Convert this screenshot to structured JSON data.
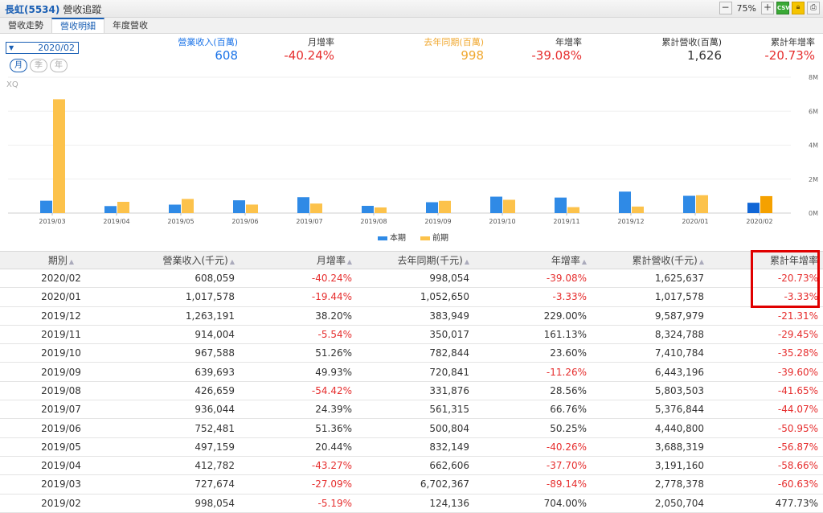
{
  "header": {
    "stock": "長虹(5534)",
    "title": "營收追蹤",
    "zoom": "75%",
    "csv_label": "CSV"
  },
  "tabs": [
    {
      "label": "營收走勢"
    },
    {
      "label": "營收明細"
    },
    {
      "label": "年度營收"
    }
  ],
  "controls": {
    "period": "2020/02",
    "freq": [
      "月",
      "季",
      "年"
    ]
  },
  "summary": [
    {
      "label": "營業收入(百萬)",
      "value": "608"
    },
    {
      "label": "月增率",
      "value": "-40.24%"
    },
    {
      "label": "去年同期(百萬)",
      "value": "998"
    },
    {
      "label": "年增率",
      "value": "-39.08%"
    },
    {
      "label": "累計營收(百萬)",
      "value": "1,626"
    },
    {
      "label": "累計年增率",
      "value": "-20.73%"
    }
  ],
  "chart_data": {
    "type": "bar",
    "watermark": "XQ",
    "categories": [
      "2019/03",
      "2019/04",
      "2019/05",
      "2019/06",
      "2019/07",
      "2019/08",
      "2019/09",
      "2019/10",
      "2019/11",
      "2019/12",
      "2020/01",
      "2020/02"
    ],
    "series": [
      {
        "name": "本期",
        "values": [
          727674,
          412782,
          497159,
          752481,
          936044,
          426659,
          639693,
          967588,
          914004,
          1263191,
          1017578,
          608059
        ]
      },
      {
        "name": "前期",
        "values": [
          6702367,
          662606,
          832149,
          500804,
          561315,
          331876,
          720841,
          782844,
          350017,
          383949,
          1052650,
          998054
        ]
      }
    ],
    "yticks": [
      "0M",
      "2M",
      "4M",
      "6M",
      "8M"
    ],
    "ylim": [
      0,
      8000000
    ],
    "legend_position": "bottom",
    "colors": {
      "current": "#2f8ae6",
      "current_latest": "#1166d6",
      "previous": "#fcc24b",
      "previous_latest": "#f5a100"
    }
  },
  "table": {
    "headers": [
      "期別",
      "營業收入(千元)",
      "月增率",
      "去年同期(千元)",
      "年增率",
      "累計營收(千元)",
      "累計年增率"
    ],
    "rows": [
      [
        "2020/02",
        "608,059",
        "-40.24%",
        "998,054",
        "-39.08%",
        "1,625,637",
        "-20.73%"
      ],
      [
        "2020/01",
        "1,017,578",
        "-19.44%",
        "1,052,650",
        "-3.33%",
        "1,017,578",
        "-3.33%"
      ],
      [
        "2019/12",
        "1,263,191",
        "38.20%",
        "383,949",
        "229.00%",
        "9,587,979",
        "-21.31%"
      ],
      [
        "2019/11",
        "914,004",
        "-5.54%",
        "350,017",
        "161.13%",
        "8,324,788",
        "-29.45%"
      ],
      [
        "2019/10",
        "967,588",
        "51.26%",
        "782,844",
        "23.60%",
        "7,410,784",
        "-35.28%"
      ],
      [
        "2019/09",
        "639,693",
        "49.93%",
        "720,841",
        "-11.26%",
        "6,443,196",
        "-39.60%"
      ],
      [
        "2019/08",
        "426,659",
        "-54.42%",
        "331,876",
        "28.56%",
        "5,803,503",
        "-41.65%"
      ],
      [
        "2019/07",
        "936,044",
        "24.39%",
        "561,315",
        "66.76%",
        "5,376,844",
        "-44.07%"
      ],
      [
        "2019/06",
        "752,481",
        "51.36%",
        "500,804",
        "50.25%",
        "4,440,800",
        "-50.95%"
      ],
      [
        "2019/05",
        "497,159",
        "20.44%",
        "832,149",
        "-40.26%",
        "3,688,319",
        "-56.87%"
      ],
      [
        "2019/04",
        "412,782",
        "-43.27%",
        "662,606",
        "-37.70%",
        "3,191,160",
        "-58.66%"
      ],
      [
        "2019/03",
        "727,674",
        "-27.09%",
        "6,702,367",
        "-89.14%",
        "2,778,378",
        "-60.63%"
      ],
      [
        "2019/02",
        "998,054",
        "-5.19%",
        "124,136",
        "704.00%",
        "2,050,704",
        "477.73%"
      ]
    ]
  }
}
